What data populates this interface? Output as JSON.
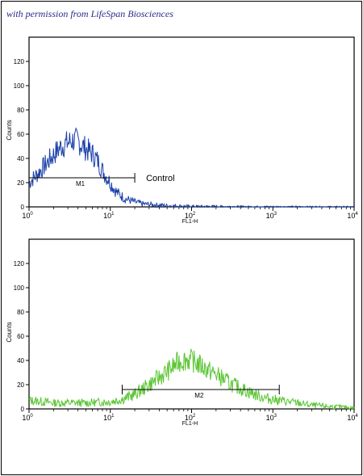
{
  "permission_note": "with permission from LifeSpan Biosciences",
  "colors": {
    "control": "#1a3fa8",
    "sample": "#5cc636",
    "axis": "#000000"
  },
  "chart_data": [
    {
      "type": "line",
      "xscale": "log",
      "xlim": [
        1,
        10000
      ],
      "ylim": [
        0,
        140
      ],
      "xlabel": "FL1-H",
      "ylabel": "Counts",
      "xticks": [
        1,
        10,
        100,
        1000,
        10000
      ],
      "xtick_labels": [
        {
          "base": "10",
          "exp": "0"
        },
        {
          "base": "10",
          "exp": "1"
        },
        {
          "base": "10",
          "exp": "2"
        },
        {
          "base": "10",
          "exp": "3"
        },
        {
          "base": "10",
          "exp": "4"
        }
      ],
      "yticks": [
        0,
        20,
        40,
        60,
        80,
        100,
        120
      ],
      "ytick_labels": [
        "0",
        "20",
        "40",
        "60",
        "80",
        "100",
        "120"
      ],
      "series": [
        {
          "color": "#1a3fa8",
          "x": [
            1,
            1.3,
            1.6,
            2,
            2.5,
            3,
            3.5,
            4,
            5,
            6,
            7,
            8,
            10,
            12,
            15,
            20,
            25,
            30,
            40,
            50,
            70,
            100,
            200,
            500,
            1000,
            3000,
            10000
          ],
          "y": [
            20,
            28,
            35,
            43,
            50,
            53,
            55,
            54,
            48,
            44,
            38,
            30,
            20,
            12,
            7,
            4,
            2.5,
            2,
            1.5,
            1,
            0.8,
            0.5,
            0.4,
            0.2,
            0.2,
            0.1,
            0
          ]
        }
      ],
      "markers": [
        {
          "label": "M1",
          "x_start": 1,
          "x_end": 20
        }
      ],
      "annotations": [
        {
          "text": "Control"
        }
      ]
    },
    {
      "type": "line",
      "xscale": "log",
      "xlim": [
        1,
        10000
      ],
      "ylim": [
        0,
        140
      ],
      "xlabel": "FL1-H",
      "ylabel": "Counts",
      "xticks": [
        1,
        10,
        100,
        1000,
        10000
      ],
      "xtick_labels": [
        {
          "base": "10",
          "exp": "0"
        },
        {
          "base": "10",
          "exp": "1"
        },
        {
          "base": "10",
          "exp": "2"
        },
        {
          "base": "10",
          "exp": "3"
        },
        {
          "base": "10",
          "exp": "4"
        }
      ],
      "yticks": [
        0,
        20,
        40,
        60,
        80,
        100,
        120
      ],
      "ytick_labels": [
        "0",
        "20",
        "40",
        "60",
        "80",
        "100",
        "120"
      ],
      "series": [
        {
          "color": "#5cc636",
          "x": [
            1,
            1.5,
            2,
            3,
            5,
            7,
            10,
            14,
            20,
            30,
            40,
            55,
            70,
            85,
            100,
            130,
            170,
            230,
            300,
            400,
            600,
            800,
            1000,
            1500,
            2000,
            3000,
            5000,
            10000
          ],
          "y": [
            7,
            6,
            5,
            5,
            5,
            5.5,
            6,
            8,
            12,
            20,
            26,
            33,
            39,
            41,
            40,
            36,
            31,
            26,
            21,
            17,
            12,
            9,
            8,
            6,
            5,
            3,
            2,
            1
          ]
        }
      ],
      "markers": [
        {
          "label": "M2",
          "x_start": 14,
          "x_end": 1200
        }
      ],
      "annotations": []
    }
  ]
}
